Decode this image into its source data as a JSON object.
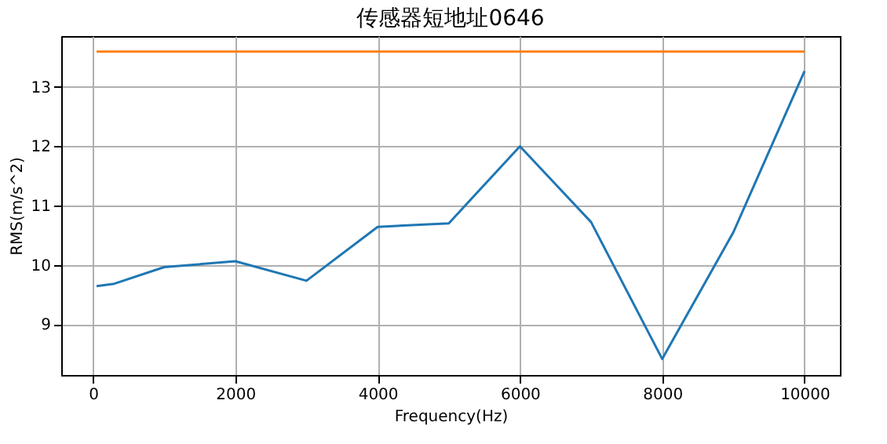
{
  "chart_data": {
    "type": "line",
    "title": "传感器短地址0646",
    "xlabel": "Frequency(Hz)",
    "ylabel": "RMS(m/s^2)",
    "xlim": [
      -447,
      10497
    ],
    "ylim": [
      8.14,
      13.86
    ],
    "xticks": [
      0,
      2000,
      4000,
      6000,
      8000,
      10000
    ],
    "yticks": [
      9,
      10,
      11,
      12,
      13
    ],
    "grid": true,
    "series": [
      {
        "color": "#1f77b4",
        "x": [
          50,
          300,
          1000,
          2000,
          3000,
          4000,
          5000,
          6000,
          7000,
          8000,
          9000,
          10000
        ],
        "values": [
          9.64,
          9.68,
          9.96,
          10.06,
          9.73,
          10.64,
          10.7,
          12.0,
          10.72,
          8.41,
          10.55,
          13.27
        ]
      },
      {
        "color": "#ff7f0e",
        "x": [
          50,
          10000
        ],
        "values": [
          13.6,
          13.6
        ]
      }
    ]
  }
}
